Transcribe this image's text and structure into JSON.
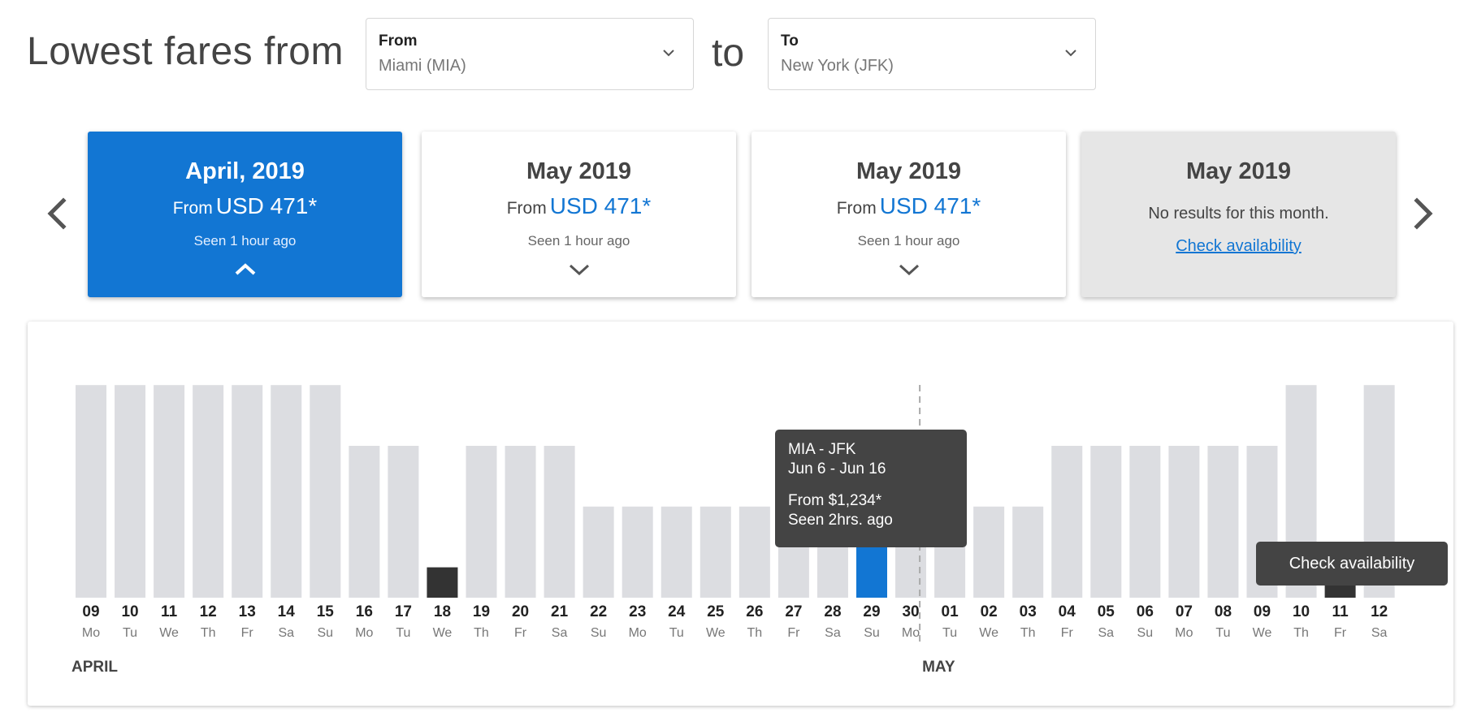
{
  "header": {
    "title": "Lowest fares from",
    "to_word": "to",
    "from_select": {
      "label": "From",
      "value": "Miami (MIA)"
    },
    "to_select": {
      "label": "To",
      "value": "New York (JFK)"
    }
  },
  "month_cards": [
    {
      "title": "April, 2019",
      "from_label": "From",
      "price": "USD 471*",
      "seen": "Seen 1 hour ago",
      "chevron": "chevron-up-icon",
      "state": "active"
    },
    {
      "title": "May 2019",
      "from_label": "From",
      "price": "USD 471*",
      "seen": "Seen 1 hour ago",
      "chevron": "chevron-down-icon",
      "state": "normal"
    },
    {
      "title": "May 2019",
      "from_label": "From",
      "price": "USD 471*",
      "seen": "Seen 1 hour ago",
      "chevron": "chevron-down-icon",
      "state": "normal"
    },
    {
      "title": "May 2019",
      "no_results": "No results for this month.",
      "link": "Check availability",
      "state": "disabled"
    }
  ],
  "nav": {
    "prev_icon": "chevron-left-icon",
    "next_icon": "chevron-right-icon"
  },
  "chart_data": {
    "type": "bar",
    "level_scale": "relative fare level (0 = none, 1 = small, 3 = low, 5 = mid, 7 = high)",
    "categories": [
      "09",
      "10",
      "11",
      "12",
      "13",
      "14",
      "15",
      "16",
      "17",
      "18",
      "19",
      "20",
      "21",
      "22",
      "23",
      "24",
      "25",
      "26",
      "27",
      "28",
      "29",
      "30",
      "01",
      "02",
      "03",
      "04",
      "05",
      "06",
      "07",
      "08",
      "09",
      "10",
      "11",
      "12"
    ],
    "weekdays": [
      "Mo",
      "Tu",
      "We",
      "Th",
      "Fr",
      "Sa",
      "Su",
      "Mo",
      "Tu",
      "We",
      "Th",
      "Fr",
      "Sa",
      "Su",
      "Mo",
      "Tu",
      "We",
      "Th",
      "Fr",
      "Sa",
      "Su",
      "Mo",
      "Tu",
      "We",
      "Th",
      "Fr",
      "Sa",
      "Su",
      "Mo",
      "Tu",
      "We",
      "Th",
      "Fr",
      "Sa"
    ],
    "values": [
      7,
      7,
      7,
      7,
      7,
      7,
      7,
      5,
      5,
      1,
      5,
      5,
      5,
      3,
      3,
      3,
      3,
      3,
      3,
      3,
      2,
      3,
      3,
      3,
      3,
      5,
      5,
      5,
      5,
      5,
      5,
      7,
      1,
      7
    ],
    "highlight": [
      "normal",
      "normal",
      "normal",
      "normal",
      "normal",
      "normal",
      "normal",
      "normal",
      "normal",
      "dark",
      "normal",
      "normal",
      "normal",
      "normal",
      "normal",
      "normal",
      "normal",
      "normal",
      "normal",
      "normal",
      "selected",
      "normal",
      "normal",
      "normal",
      "normal",
      "normal",
      "normal",
      "normal",
      "normal",
      "normal",
      "normal",
      "normal",
      "dark",
      "normal"
    ],
    "month_labels": [
      {
        "label": "APRIL",
        "start_index": 0
      },
      {
        "label": "MAY",
        "start_index": 22
      }
    ],
    "colors": {
      "bar": "#dcdde1",
      "selected": "#1276d3",
      "dark": "#333333",
      "divider": "#aaaaaa"
    }
  },
  "tooltip": {
    "route": "MIA - JFK",
    "dates": "Jun 6 - Jun 16",
    "price": "From $1,234*",
    "seen": "Seen 2hrs. ago"
  },
  "availability_tooltip": {
    "label": "Check availability"
  },
  "colors": {
    "accent": "#1276d3",
    "tooltip_bg": "#444444"
  }
}
